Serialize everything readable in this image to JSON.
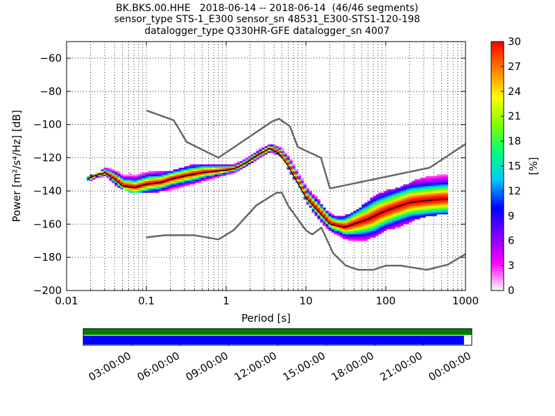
{
  "title_lines": [
    "BK.BKS.00.HHE   2018-06-14 -- 2018-06-14  (46/46 segments)",
    "sensor_type STS-1_E300 sensor_sn 48531_E300-STS1-120-198",
    "datalogger_type Q330HR-GFE datalogger_sn 4007"
  ],
  "chart_data": [
    {
      "type": "heatmap",
      "description_kind": "probabilistic power spectral density",
      "xlabel": "Period [s]",
      "ylabel": "Power [m²/s⁴/Hz] [dB]",
      "x_scale": "log",
      "xlim": [
        0.01,
        1000
      ],
      "ylim": [
        -200,
        -50
      ],
      "x_ticks": [
        0.01,
        0.1,
        1,
        10,
        100,
        1000
      ],
      "x_tick_labels": [
        "0.01",
        "0.1",
        "1",
        "10",
        "100",
        "1000"
      ],
      "y_ticks": [
        -60,
        -80,
        -100,
        -120,
        -140,
        -160,
        -180,
        -200
      ],
      "y_tick_labels": [
        "−60",
        "−80",
        "−100",
        "−120",
        "−140",
        "−160",
        "−180",
        "−200"
      ],
      "grid": "dotted vertical (major and minor x), horizontal at y ticks",
      "colorbar": {
        "label": "[%]",
        "range": [
          0,
          30
        ],
        "ticks": [
          0,
          3,
          6,
          9,
          12,
          15,
          18,
          21,
          24,
          27,
          30
        ],
        "colormap": [
          "#ffffff",
          "#ff00ff",
          "#7f00ff",
          "#0000ff",
          "#00c8ff",
          "#00ff7f",
          "#7fff00",
          "#ffff00",
          "#ff8000",
          "#ff0000"
        ]
      },
      "noise_model_high": {
        "name": "NHNM",
        "color": "#666666",
        "x": [
          0.1,
          0.22,
          0.32,
          0.8,
          3.8,
          4.6,
          6.3,
          7.9,
          15.4,
          20,
          354.8,
          10000
        ],
        "y": [
          -91.5,
          -97.4,
          -110.5,
          -120,
          -98,
          -96.5,
          -101,
          -113.5,
          -120,
          -138.5,
          -126,
          -80.1
        ]
      },
      "noise_model_low": {
        "name": "NLNM",
        "color": "#666666",
        "x": [
          0.1,
          0.17,
          0.4,
          0.8,
          1.24,
          2.4,
          4.3,
          5,
          6,
          10,
          12,
          15.6,
          21.9,
          31.6,
          45,
          70,
          101,
          154,
          328,
          600,
          1000
        ],
        "y": [
          -168,
          -166.7,
          -166.7,
          -169.2,
          -163.7,
          -148.6,
          -141.1,
          -141.1,
          -149,
          -163.8,
          -166.2,
          -162.1,
          -177.5,
          -185,
          -187.5,
          -187.5,
          -185,
          -185,
          -187.5,
          -184.4,
          -178
        ]
      },
      "mean_curve": {
        "name": "median PSD",
        "color": "#000000",
        "x": [
          0.018,
          0.022,
          0.03,
          0.04,
          0.05,
          0.07,
          0.1,
          0.15,
          0.2,
          0.3,
          0.5,
          0.8,
          1.2,
          1.8,
          2.5,
          3.5,
          4.5,
          6,
          8,
          10,
          14,
          20,
          30,
          40,
          60,
          80,
          100,
          150,
          200,
          300,
          500,
          600
        ],
        "y": [
          -133,
          -131,
          -129,
          -133,
          -137,
          -138,
          -136,
          -135,
          -133,
          -131,
          -129,
          -128,
          -127,
          -123,
          -118,
          -114.5,
          -117,
          -125,
          -136,
          -144,
          -152,
          -160,
          -162,
          -160,
          -157,
          -154,
          -152,
          -149,
          -147,
          -146,
          -145,
          -145
        ]
      },
      "density_bands": [
        {
          "x": [
            0.018,
            0.025,
            0.03,
            0.04,
            0.06,
            0.1,
            0.2,
            0.4,
            0.8,
            1.2,
            2,
            3,
            4,
            5,
            6,
            8,
            10,
            14,
            18,
            25,
            35,
            50,
            70,
            100,
            150,
            200,
            300,
            600
          ],
          "lower": [
            -134,
            -133,
            -131,
            -136,
            -141,
            -141,
            -139,
            -135,
            -131,
            -129,
            -123,
            -118,
            -117,
            -120,
            -128,
            -138,
            -147,
            -157,
            -163,
            -167,
            -170,
            -170,
            -167,
            -163,
            -161,
            -158,
            -155,
            -153
          ],
          "upper": [
            -132,
            -130,
            -127,
            -129,
            -131,
            -130,
            -129,
            -125,
            -125,
            -125,
            -119,
            -114,
            -113,
            -115,
            -121,
            -131,
            -139,
            -147,
            -154,
            -157,
            -155,
            -150,
            -144,
            -141,
            -139,
            -136,
            -133,
            -131
          ]
        }
      ]
    },
    {
      "type": "bar",
      "description_kind": "data availability timeline",
      "x_tick_labels": [
        "03:00:00",
        "06:00:00",
        "09:00:00",
        "12:00:00",
        "15:00:00",
        "18:00:00",
        "21:00:00",
        "00:00:00"
      ],
      "series": [
        {
          "color": "#008000",
          "start_fraction": 0.0,
          "end_fraction": 1.0
        },
        {
          "color": "#0000ff",
          "start_fraction": 0.0,
          "end_fraction": 0.98
        }
      ]
    }
  ]
}
